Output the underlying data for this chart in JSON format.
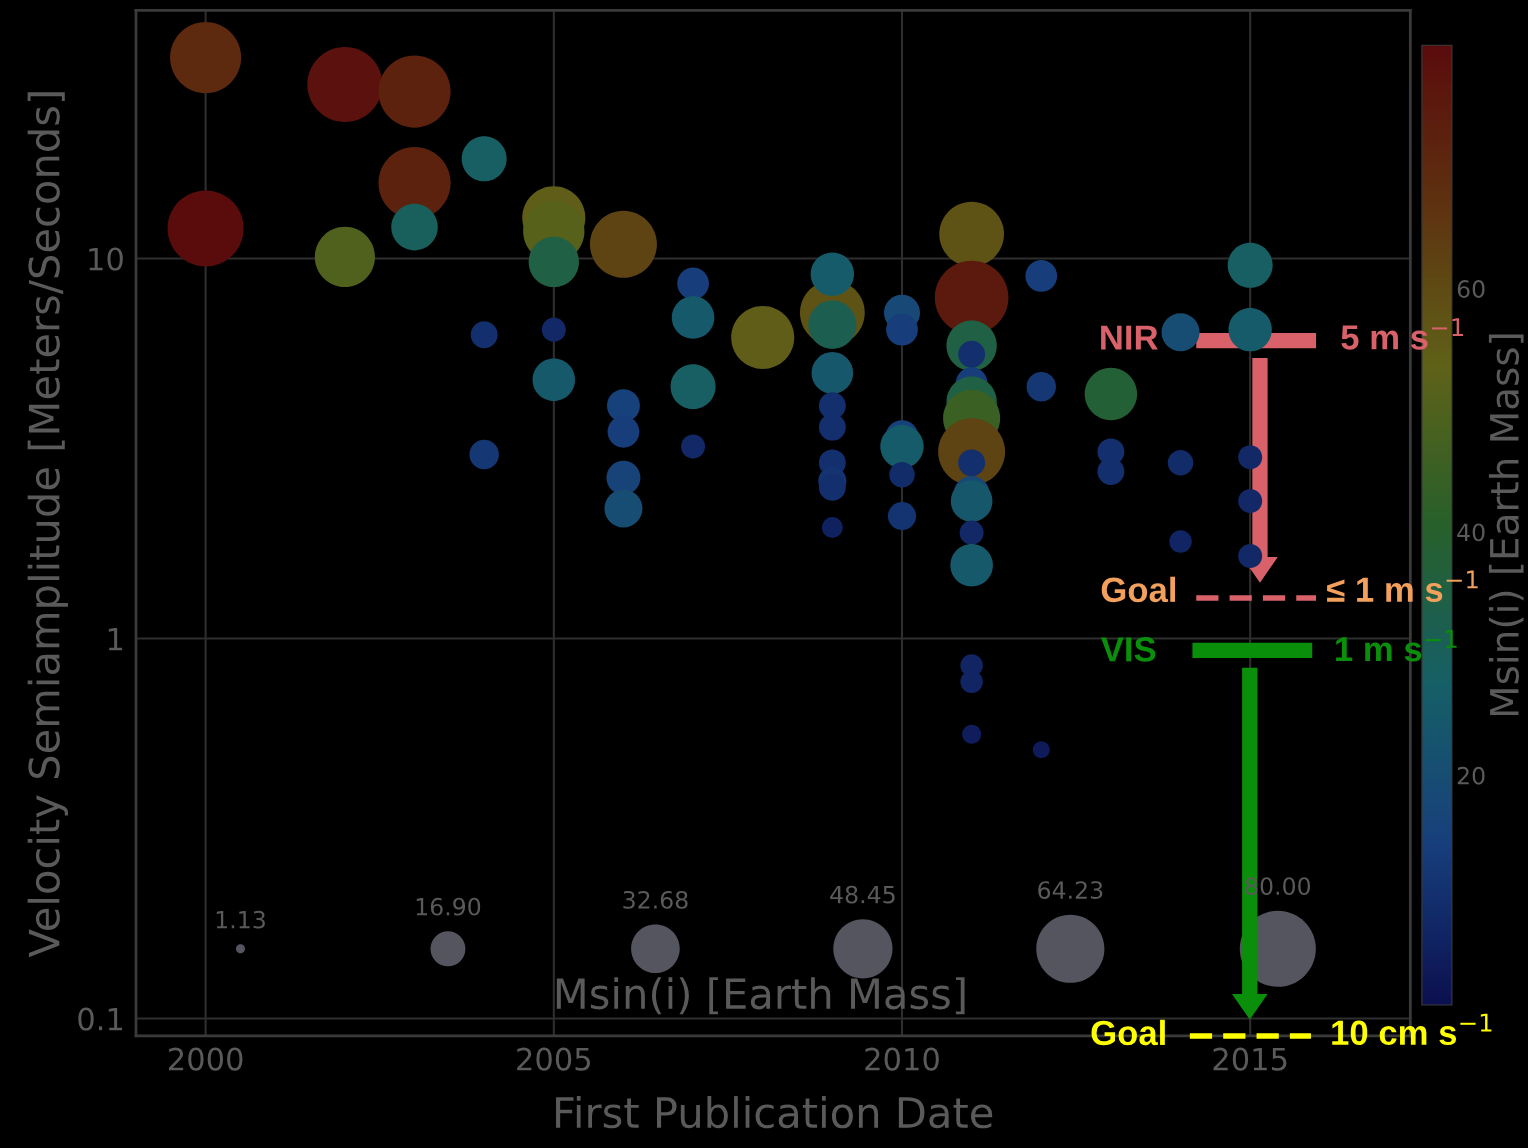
{
  "chart_data": {
    "type": "bubble",
    "xlabel": "First Publication Date",
    "ylabel": "Velocity Semiamplitude [Meters/Seconds]",
    "clabel": "Msin(i) [Earth Mass]",
    "legend_title": "Msin(i) [Earth Mass]",
    "x": [
      2000,
      2000,
      2002,
      2002,
      2003,
      2003,
      2003,
      2004,
      2004,
      2004,
      2005,
      2005,
      2005,
      2005,
      2005,
      2006,
      2006,
      2006,
      2006,
      2006,
      2007,
      2007,
      2007,
      2007,
      2008,
      2009,
      2009,
      2009,
      2009,
      2009,
      2009,
      2009,
      2009,
      2009,
      2009,
      2010,
      2010,
      2010,
      2010,
      2010,
      2010,
      2011,
      2011,
      2011,
      2011,
      2011,
      2011,
      2011,
      2011,
      2011,
      2011,
      2011,
      2011,
      2011,
      2011,
      2011,
      2011,
      2012,
      2012,
      2012,
      2013,
      2013,
      2013,
      2014,
      2014,
      2014,
      2015,
      2015,
      2015,
      2015,
      2015
    ],
    "values": [
      33.8,
      12.0,
      28.7,
      10.1,
      27.5,
      15.8,
      12.1,
      18.3,
      6.3,
      3.05,
      12.8,
      11.8,
      9.8,
      6.5,
      4.8,
      10.9,
      4.1,
      3.5,
      2.65,
      2.2,
      8.6,
      7.0,
      4.6,
      3.2,
      6.2,
      7.2,
      9.1,
      6.7,
      5.0,
      4.1,
      3.6,
      2.9,
      2.6,
      2.5,
      1.96,
      7.2,
      6.5,
      3.4,
      3.2,
      2.7,
      2.1,
      11.6,
      7.9,
      5.9,
      5.6,
      4.7,
      4.2,
      3.8,
      3.1,
      2.9,
      2.4,
      2.3,
      1.9,
      1.56,
      0.85,
      0.77,
      0.56,
      9.0,
      4.6,
      0.51,
      4.4,
      3.1,
      2.75,
      6.4,
      2.9,
      1.8,
      9.6,
      6.5,
      3.0,
      2.3,
      1.65
    ],
    "cvalues": [
      70,
      80,
      78,
      50,
      72,
      72,
      30,
      28,
      10,
      12,
      55,
      52,
      35,
      8,
      25,
      62,
      15,
      14,
      16,
      20,
      14,
      25,
      28,
      8,
      55,
      58,
      26,
      32,
      24,
      10,
      10,
      10,
      11,
      10,
      6,
      18,
      14,
      15,
      26,
      9,
      11,
      58,
      75,
      35,
      10,
      14,
      35,
      45,
      62,
      10,
      18,
      24,
      8,
      25,
      7,
      7,
      5,
      14,
      12,
      4,
      38,
      10,
      10,
      20,
      9,
      7,
      28,
      26,
      8,
      8,
      8
    ],
    "sizes": [
      70,
      80,
      78,
      50,
      72,
      72,
      30,
      28,
      10,
      12,
      55,
      52,
      35,
      8,
      25,
      62,
      15,
      14,
      16,
      20,
      14,
      25,
      28,
      8,
      55,
      58,
      26,
      32,
      24,
      10,
      10,
      10,
      11,
      10,
      6,
      18,
      14,
      15,
      26,
      9,
      11,
      58,
      75,
      35,
      10,
      14,
      35,
      45,
      62,
      10,
      18,
      24,
      8,
      25,
      7,
      7,
      5,
      14,
      12,
      4,
      38,
      10,
      10,
      20,
      9,
      7,
      28,
      26,
      8,
      8,
      8
    ],
    "size_legend": [
      1.13,
      {
        "value": 16.9,
        "label": "16.90"
      },
      32.68,
      48.45,
      64.23,
      {
        "value": 80,
        "label": "80.00"
      }
    ],
    "clim": [
      1.13,
      80
    ],
    "cticks": [
      20,
      40,
      60
    ],
    "log": true,
    "xlim": [
      1999,
      2017.3
    ],
    "xticks": [
      2000,
      2005,
      2010,
      2015
    ],
    "ylim": [
      0.09,
      45
    ],
    "yticks": [
      0.1,
      1,
      10
    ],
    "grid": true,
    "annotations": [
      "NIR",
      "5 m s$^{−1}$",
      "Goal",
      "≤ 1 m s$^{−1}$",
      "VIS",
      "1 m s$^{−1}$",
      "Goal",
      "10 cm s$^{−1}$"
    ]
  }
}
